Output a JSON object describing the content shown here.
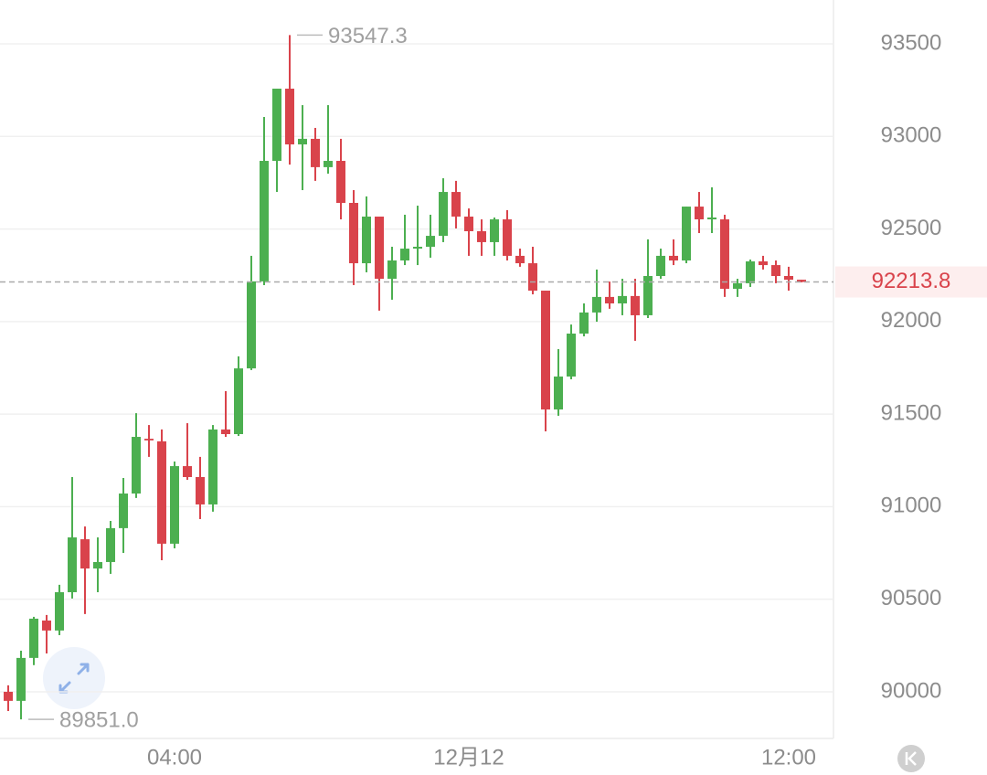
{
  "chart_data": {
    "type": "candlestick",
    "categories": [
      null,
      null,
      null,
      null,
      null,
      null,
      null,
      null,
      null,
      null,
      null,
      null,
      null,
      "04:00",
      null,
      null,
      null,
      null,
      null,
      null,
      null,
      null,
      null,
      null,
      null,
      null,
      null,
      null,
      null,
      null,
      null,
      null,
      null,
      null,
      null,
      null,
      "12月12",
      null,
      null,
      null,
      null,
      null,
      null,
      null,
      null,
      null,
      null,
      null,
      null,
      null,
      null,
      null,
      null,
      null,
      null,
      null,
      null,
      null,
      null,
      null,
      null,
      "12:00",
      null
    ],
    "open": [
      90000,
      89951,
      90183,
      90385,
      90331,
      90538,
      90824,
      90666,
      90701,
      90884,
      91071,
      91367,
      91353,
      90800,
      91219,
      91160,
      91012,
      91417,
      91392,
      91747,
      92217,
      92868,
      93258,
      92957,
      92987,
      92834,
      92868,
      92641,
      92315,
      92567,
      92231,
      92330,
      92394,
      92404,
      92463,
      92700,
      92567,
      92488,
      92429,
      92552,
      92355,
      92315,
      92167,
      91525,
      91703,
      91935,
      92049,
      92133,
      92098,
      92138,
      92034,
      92246,
      92355,
      92330,
      92621,
      92552,
      92552,
      92177,
      92207,
      92325,
      92305,
      92246,
      92226
    ],
    "high": [
      90035,
      90222,
      90405,
      90415,
      90578,
      91160,
      90893,
      90834,
      90923,
      91155,
      91505,
      91441,
      91417,
      91244,
      91451,
      91269,
      91441,
      91624,
      91812,
      92355,
      93105,
      93258,
      93547.3,
      93169,
      93046,
      93169,
      92987,
      92710,
      92676,
      92567,
      92404,
      92577,
      92626,
      92577,
      92774,
      92760,
      92611,
      92552,
      92562,
      92602,
      92394,
      92404,
      92167,
      91851,
      91984,
      92098,
      92281,
      92216,
      92231,
      92231,
      92444,
      92394,
      92444,
      92621,
      92700,
      92725,
      92577,
      92231,
      92335,
      92355,
      92330,
      92296,
      92226
    ],
    "low": [
      89896,
      89851,
      90144,
      90207,
      90306,
      90504,
      90420,
      90538,
      90637,
      90750,
      91047,
      91269,
      90711,
      90775,
      91145,
      90933,
      90973,
      91377,
      91382,
      91738,
      92197,
      92700,
      92848,
      92710,
      92760,
      92799,
      92552,
      92197,
      92266,
      92059,
      92118,
      92305,
      92305,
      92345,
      92429,
      92503,
      92355,
      92355,
      92355,
      92330,
      92296,
      92147,
      91407,
      91491,
      91688,
      91920,
      91999,
      92069,
      92034,
      91896,
      92019,
      92231,
      92305,
      92315,
      92478,
      92478,
      92133,
      92133,
      92187,
      92281,
      92207,
      92167,
      92212
    ],
    "close": [
      89951,
      90183,
      90395,
      90331,
      90538,
      90834,
      90666,
      90701,
      90884,
      91071,
      91377,
      91358,
      90800,
      91219,
      91160,
      91012,
      91417,
      91392,
      91747,
      92217,
      92868,
      93258,
      92957,
      92987,
      92834,
      92868,
      92641,
      92315,
      92567,
      92231,
      92330,
      92394,
      92404,
      92463,
      92700,
      92567,
      92488,
      92429,
      92552,
      92355,
      92315,
      92167,
      91525,
      91703,
      91935,
      92049,
      92133,
      92098,
      92138,
      92034,
      92246,
      92355,
      92330,
      92621,
      92552,
      92562,
      92177,
      92207,
      92325,
      92305,
      92246,
      92226,
      92213.8
    ],
    "up_color": "#4caf50",
    "down_color": "#d9434b",
    "ylim": [
      89748,
      93737
    ],
    "yticks": [
      90000,
      90500,
      91000,
      91500,
      92000,
      92500,
      93000,
      93500
    ],
    "grid": true,
    "last_price": 92213.8,
    "annotations": [
      {
        "value": 93547.3,
        "label": "93547.3"
      },
      {
        "value": 89851,
        "label": "89851.0"
      }
    ]
  }
}
